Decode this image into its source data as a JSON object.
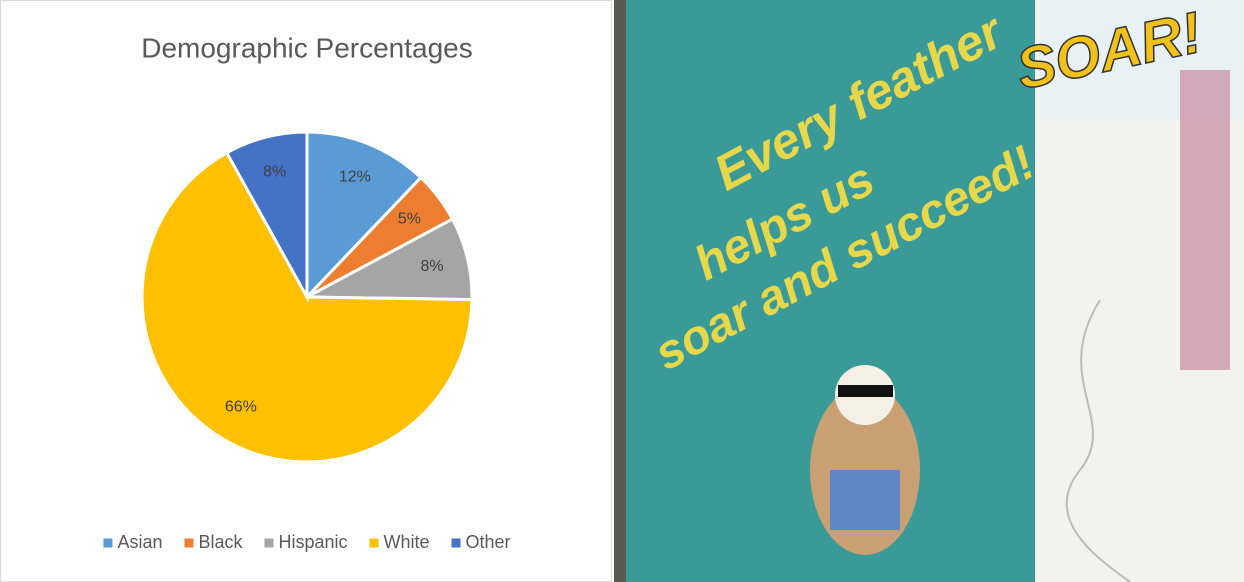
{
  "chart_data": {
    "type": "pie",
    "title": "Demographic Percentages",
    "categories": [
      "Asian",
      "Black",
      "Hispanic",
      "White",
      "Other"
    ],
    "values": [
      12,
      5,
      8,
      66,
      8
    ],
    "value_labels": [
      "12%",
      "5%",
      "8%",
      "66%",
      "8%"
    ],
    "colors": [
      "#5b9bd5",
      "#ed7d31",
      "#a5a5a5",
      "#ffc000",
      "#4472c4"
    ],
    "legend": "bottom"
  },
  "photo": {
    "banner": [
      "Every feather",
      "helps us",
      "soar and succeed!"
    ],
    "sign": "SOAR!"
  }
}
